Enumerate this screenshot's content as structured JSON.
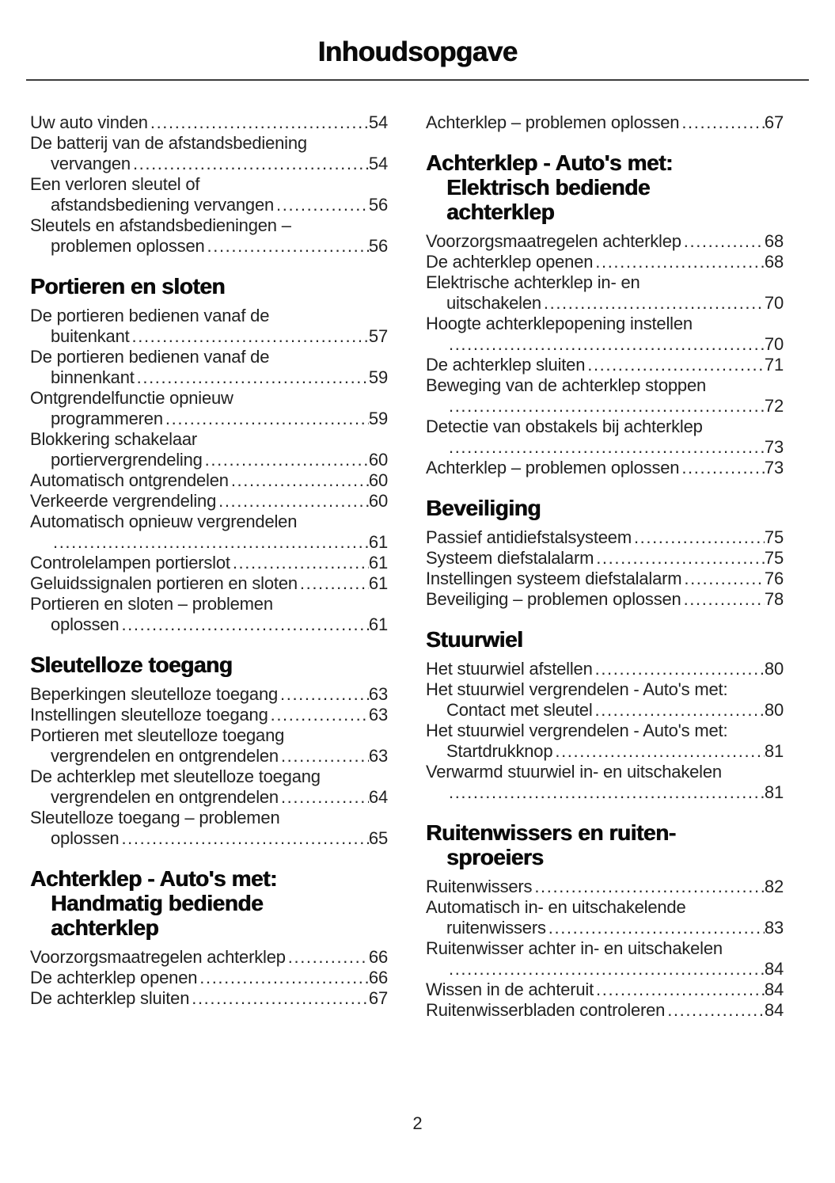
{
  "page": {
    "title": "Inhoudsopgave",
    "page_number": "2"
  },
  "columns": {
    "left": {
      "blocks": [
        {
          "type": "entry",
          "lines": [
            "Uw auto vinden"
          ],
          "page": "54"
        },
        {
          "type": "entry",
          "lines": [
            "De batterij van de afstandsbediening",
            "vervangen"
          ],
          "page": "54"
        },
        {
          "type": "entry",
          "lines": [
            "Een verloren sleutel of",
            "afstandsbediening vervangen"
          ],
          "page": "56"
        },
        {
          "type": "entry",
          "lines": [
            "Sleutels en afstandsbedieningen –",
            "problemen oplossen"
          ],
          "page": "56"
        },
        {
          "type": "heading",
          "lines": [
            "Portieren en sloten"
          ]
        },
        {
          "type": "entry",
          "lines": [
            "De portieren bedienen vanaf de",
            "buitenkant"
          ],
          "page": "57"
        },
        {
          "type": "entry",
          "lines": [
            "De portieren bedienen vanaf de",
            "binnenkant"
          ],
          "page": "59"
        },
        {
          "type": "entry",
          "lines": [
            "Ontgrendelfunctie opnieuw",
            "programmeren"
          ],
          "page": "59"
        },
        {
          "type": "entry",
          "lines": [
            "Blokkering schakelaar",
            "portiervergrendeling"
          ],
          "page": "60"
        },
        {
          "type": "entry",
          "lines": [
            "Automatisch ontgrendelen"
          ],
          "page": "60"
        },
        {
          "type": "entry",
          "lines": [
            "Verkeerde vergrendeling"
          ],
          "page": "60"
        },
        {
          "type": "entry",
          "lines": [
            "Automatisch opnieuw vergrendelen",
            ""
          ],
          "page": "61"
        },
        {
          "type": "entry",
          "lines": [
            "Controlelampen portierslot"
          ],
          "page": "61"
        },
        {
          "type": "entry",
          "lines": [
            "Geluidssignalen portieren en sloten"
          ],
          "page": "61"
        },
        {
          "type": "entry",
          "lines": [
            "Portieren en sloten – problemen",
            "oplossen"
          ],
          "page": "61"
        },
        {
          "type": "heading",
          "lines": [
            "Sleutelloze toegang"
          ]
        },
        {
          "type": "entry",
          "lines": [
            "Beperkingen sleutelloze toegang"
          ],
          "page": "63"
        },
        {
          "type": "entry",
          "lines": [
            "Instellingen sleutelloze toegang"
          ],
          "page": "63"
        },
        {
          "type": "entry",
          "lines": [
            "Portieren met sleutelloze toegang",
            "vergrendelen en ontgrendelen"
          ],
          "page": "63"
        },
        {
          "type": "entry",
          "lines": [
            "De achterklep met sleutelloze toegang",
            "vergrendelen en ontgrendelen"
          ],
          "page": "64"
        },
        {
          "type": "entry",
          "lines": [
            "Sleutelloze toegang – problemen",
            "oplossen"
          ],
          "page": "65"
        },
        {
          "type": "heading",
          "lines": [
            "Achterklep - Auto's met:",
            "Handmatig bediende",
            "achterklep"
          ]
        },
        {
          "type": "entry",
          "lines": [
            "Voorzorgsmaatregelen achterklep"
          ],
          "page": "66"
        },
        {
          "type": "entry",
          "lines": [
            "De achterklep openen"
          ],
          "page": "66"
        },
        {
          "type": "entry",
          "lines": [
            "De achterklep sluiten"
          ],
          "page": "67"
        }
      ]
    },
    "right": {
      "blocks": [
        {
          "type": "entry",
          "lines": [
            "Achterklep – problemen oplossen"
          ],
          "page": "67"
        },
        {
          "type": "heading",
          "lines": [
            "Achterklep - Auto's met:",
            "Elektrisch bediende",
            "achterklep"
          ]
        },
        {
          "type": "entry",
          "lines": [
            "Voorzorgsmaatregelen achterklep"
          ],
          "page": "68"
        },
        {
          "type": "entry",
          "lines": [
            "De achterklep openen"
          ],
          "page": "68"
        },
        {
          "type": "entry",
          "lines": [
            "Elektrische achterklep in- en",
            "uitschakelen"
          ],
          "page": "70"
        },
        {
          "type": "entry",
          "lines": [
            "Hoogte achterklepopening instellen",
            ""
          ],
          "page": "70"
        },
        {
          "type": "entry",
          "lines": [
            "De achterklep sluiten"
          ],
          "page": "71"
        },
        {
          "type": "entry",
          "lines": [
            "Beweging van de achterklep stoppen",
            ""
          ],
          "page": "72"
        },
        {
          "type": "entry",
          "lines": [
            "Detectie van obstakels bij achterklep",
            ""
          ],
          "page": "73"
        },
        {
          "type": "entry",
          "lines": [
            "Achterklep – problemen oplossen"
          ],
          "page": "73"
        },
        {
          "type": "heading",
          "lines": [
            "Beveiliging"
          ]
        },
        {
          "type": "entry",
          "lines": [
            "Passief antidiefstalsysteem"
          ],
          "page": "75"
        },
        {
          "type": "entry",
          "lines": [
            "Systeem diefstalalarm"
          ],
          "page": "75"
        },
        {
          "type": "entry",
          "lines": [
            "Instellingen systeem diefstalalarm"
          ],
          "page": "76"
        },
        {
          "type": "entry",
          "lines": [
            "Beveiliging – problemen oplossen"
          ],
          "page": "78"
        },
        {
          "type": "heading",
          "lines": [
            "Stuurwiel"
          ]
        },
        {
          "type": "entry",
          "lines": [
            "Het stuurwiel afstellen"
          ],
          "page": "80"
        },
        {
          "type": "entry",
          "lines": [
            "Het stuurwiel vergrendelen - Auto's met:",
            "Contact met sleutel"
          ],
          "page": "80"
        },
        {
          "type": "entry",
          "lines": [
            "Het stuurwiel vergrendelen - Auto's met:",
            "Startdrukknop"
          ],
          "page": "81"
        },
        {
          "type": "entry",
          "lines": [
            "Verwarmd stuurwiel in- en uitschakelen",
            ""
          ],
          "page": "81"
        },
        {
          "type": "heading",
          "lines": [
            "Ruitenwissers en ruiten-",
            "sproeiers"
          ]
        },
        {
          "type": "entry",
          "lines": [
            "Ruitenwissers"
          ],
          "page": "82"
        },
        {
          "type": "entry",
          "lines": [
            "Automatisch in- en uitschakelende",
            "ruitenwissers"
          ],
          "page": "83"
        },
        {
          "type": "entry",
          "lines": [
            "Ruitenwisser achter in- en uitschakelen",
            ""
          ],
          "page": "84"
        },
        {
          "type": "entry",
          "lines": [
            "Wissen in de achteruit"
          ],
          "page": "84"
        },
        {
          "type": "entry",
          "lines": [
            "Ruitenwisserbladen controleren"
          ],
          "page": "84"
        }
      ]
    }
  }
}
